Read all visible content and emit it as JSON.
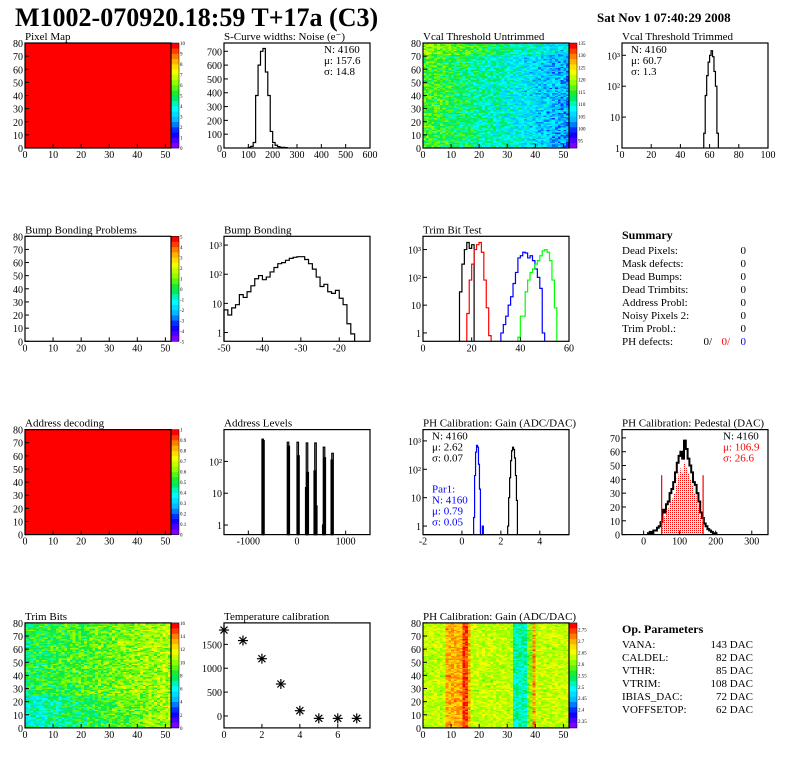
{
  "header": {
    "title": "M1002-070920.18:59 T+17a (C3)",
    "date": "Sat Nov  1 07:40:29 2008"
  },
  "palette": [
    "#8000ff",
    "#0000ff",
    "#00b4ff",
    "#00ffff",
    "#00e63c",
    "#8cff00",
    "#ffff00",
    "#ff9600",
    "#ff0000"
  ],
  "chart_data": [
    {
      "type": "heatmap",
      "title": "Pixel Map",
      "xlim": [
        0,
        52
      ],
      "ylim": [
        0,
        80
      ],
      "zlim": [
        0,
        10
      ],
      "fill_value": 10,
      "xticks": [
        "0",
        "10",
        "20",
        "30",
        "40",
        "50"
      ],
      "yticks": [
        "0",
        "10",
        "20",
        "30",
        "40",
        "50",
        "60",
        "70",
        "80"
      ],
      "zticks": [
        "0",
        "1",
        "2",
        "3",
        "4",
        "5",
        "6",
        "7",
        "8",
        "9",
        "10"
      ]
    },
    {
      "type": "bar",
      "title": "S-Curve widths: Noise (e⁻)",
      "xlim": [
        0,
        600
      ],
      "ylim": [
        0,
        760
      ],
      "log": false,
      "xticks": [
        "0",
        "100",
        "200",
        "300",
        "400",
        "500",
        "600"
      ],
      "yticks": [
        "0",
        "100",
        "200",
        "300",
        "400",
        "500",
        "600",
        "700"
      ],
      "series": [
        {
          "x0": 100,
          "width": 10,
          "values": [
            5,
            12,
            40,
            380,
            600,
            700,
            720,
            550,
            380,
            120,
            40,
            20,
            10,
            5,
            5,
            3
          ],
          "color": "#000000"
        }
      ],
      "stats": [
        "N: 4160",
        "μ: 157.6",
        "σ: 14.8"
      ]
    },
    {
      "type": "heatmap",
      "title": "Vcal Threshold Untrimmed",
      "xlim": [
        0,
        52
      ],
      "ylim": [
        0,
        80
      ],
      "zlim": [
        92,
        135
      ],
      "xticks": [
        "0",
        "10",
        "20",
        "30",
        "40",
        "50"
      ],
      "yticks": [
        "0",
        "10",
        "20",
        "30",
        "40",
        "50",
        "60",
        "70",
        "80"
      ],
      "zticks": [
        "95",
        "100",
        "105",
        "110",
        "115",
        "120",
        "125",
        "130",
        "135"
      ]
    },
    {
      "type": "bar",
      "title": "Vcal Threshold Trimmed",
      "xlim": [
        0,
        100
      ],
      "ylim": [
        1,
        2500
      ],
      "log": true,
      "xticks": [
        "0",
        "20",
        "40",
        "60",
        "80",
        "100"
      ],
      "yticks": [
        "1",
        "10",
        "10²",
        "10³"
      ],
      "series": [
        {
          "x0": 56,
          "width": 1,
          "values": [
            3,
            50,
            220,
            600,
            1000,
            1400,
            900,
            300,
            100,
            3
          ],
          "color": "#000000"
        }
      ],
      "stats": [
        "N: 4160",
        "μ: 60.7",
        "σ:  1.3"
      ]
    },
    {
      "type": "heatmap",
      "title": "Bump Bonding Problems",
      "xlim": [
        0,
        52
      ],
      "ylim": [
        0,
        80
      ],
      "zlim": [
        -5,
        5
      ],
      "empty": true,
      "xticks": [
        "0",
        "10",
        "20",
        "30",
        "40",
        "50"
      ],
      "yticks": [
        "0",
        "10",
        "20",
        "30",
        "40",
        "50",
        "60",
        "70",
        "80"
      ],
      "zticks": [
        "-5",
        "-4",
        "-3",
        "-2",
        "-1",
        "0",
        "1",
        "2",
        "3",
        "4",
        "5"
      ]
    },
    {
      "type": "bar",
      "title": "Bump Bonding",
      "xlim": [
        -50,
        -12
      ],
      "ylim": [
        0.5,
        2000
      ],
      "log": true,
      "xticks": [
        "-50",
        "-40",
        "-30",
        "-20"
      ],
      "yticks": [
        "1",
        "10",
        "10²",
        "10³"
      ],
      "series": [
        {
          "x0": -50,
          "width": 1,
          "values": [
            6,
            4,
            7,
            9,
            20,
            16,
            25,
            40,
            70,
            90,
            65,
            80,
            120,
            170,
            230,
            250,
            300,
            350,
            380,
            400,
            400,
            320,
            230,
            150,
            80,
            38,
            45,
            25,
            22,
            28,
            15,
            9,
            2,
            0.9
          ],
          "color": "#000000"
        }
      ]
    },
    {
      "type": "bar",
      "title": "Trim Bit Test",
      "xlim": [
        0,
        60
      ],
      "ylim": [
        0.5,
        3000
      ],
      "log": true,
      "xticks": [
        "0",
        "20",
        "40",
        "60"
      ],
      "yticks": [
        "1",
        "10",
        "10²",
        "10³"
      ],
      "series": [
        {
          "x0": 15,
          "width": 1,
          "values": [
            30,
            300,
            1000,
            1800,
            1100,
            1500
          ],
          "color": "#000000"
        },
        {
          "x0": 18,
          "width": 1,
          "values": [
            5,
            80,
            300,
            1000,
            1500,
            1800,
            800,
            80,
            8,
            0.8
          ],
          "color": "#ff0000"
        },
        {
          "x0": 32,
          "width": 1,
          "values": [
            1,
            2,
            4,
            10,
            20,
            60,
            150,
            500,
            600,
            800,
            750,
            500,
            600,
            400,
            200,
            100,
            40,
            1
          ],
          "color": "#0000ff"
        },
        {
          "x0": 39,
          "width": 1,
          "values": [
            0.7,
            4,
            4,
            30,
            80,
            150,
            200,
            300,
            400,
            600,
            900,
            1000,
            800,
            400,
            80,
            8
          ],
          "color": "#00ff00"
        }
      ]
    },
    {
      "type": "heatmap",
      "title": "Address decoding",
      "xlim": [
        0,
        52
      ],
      "ylim": [
        0,
        80
      ],
      "zlim": [
        0,
        1
      ],
      "fill_value": 1,
      "xticks": [
        "0",
        "10",
        "20",
        "30",
        "40",
        "50"
      ],
      "yticks": [
        "0",
        "10",
        "20",
        "30",
        "40",
        "50",
        "60",
        "70",
        "80"
      ],
      "zticks": [
        "0",
        "0.1",
        "0.2",
        "0.3",
        "0.4",
        "0.5",
        "0.6",
        "0.7",
        "0.8",
        "0.9",
        "1"
      ]
    },
    {
      "type": "bar",
      "title": "Address Levels",
      "xlim": [
        -1500,
        1500
      ],
      "ylim": [
        0.5,
        1000
      ],
      "log": true,
      "spikes": true,
      "xticks": [
        "-1000",
        "0",
        "1000"
      ],
      "yticks": [
        "1",
        "10",
        "10²"
      ],
      "series": [
        {
          "width": 15,
          "bins": [
            [
              -720,
              500
            ],
            [
              -705,
              450
            ],
            [
              -200,
              400
            ],
            [
              -185,
              300
            ],
            [
              0,
              400
            ],
            [
              15,
              150
            ],
            [
              175,
              15
            ],
            [
              190,
              380
            ],
            [
              205,
              45
            ],
            [
              350,
              50
            ],
            [
              365,
              380
            ],
            [
              380,
              4
            ],
            [
              525,
              1
            ],
            [
              540,
              280
            ],
            [
              555,
              130
            ],
            [
              700,
              110
            ],
            [
              715,
              180
            ]
          ],
          "color": "#000000"
        }
      ]
    },
    {
      "type": "bar",
      "title": "PH Calibration: Gain (ADC/DAC)",
      "xlim": [
        -2,
        5.5
      ],
      "ylim": [
        0.5,
        2500
      ],
      "log": true,
      "xticks": [
        "-2",
        "0",
        "2",
        "4"
      ],
      "yticks": [
        "1",
        "10",
        "10²",
        "10³"
      ],
      "series": [
        {
          "x0": 2.35,
          "width": 0.05,
          "values": [
            1,
            10,
            50,
            200,
            450,
            600,
            500,
            250,
            60,
            8
          ],
          "color": "#000000"
        },
        {
          "x0": 0.6,
          "width": 0.05,
          "values": [
            2,
            60,
            400,
            700,
            600,
            150,
            20,
            0,
            0,
            1
          ],
          "color": "#0000ff"
        },
        {
          "x0": -2,
          "width": 7.5,
          "values": [
            0.5
          ],
          "color": "#0000ff"
        }
      ],
      "stats": [
        "N: 4160",
        "μ: 2.62",
        "σ: 0.07"
      ],
      "stats2": [
        "Par1:",
        "N: 4160",
        "μ: 0.79",
        "σ: 0.05"
      ]
    },
    {
      "type": "bar",
      "title": "PH Calibration: Pedestal (DAC)",
      "xlim": [
        -60,
        345
      ],
      "ylim": [
        0,
        76
      ],
      "log": false,
      "xticks": [
        "0",
        "100",
        "200",
        "300"
      ],
      "yticks": [
        "0",
        "10",
        "20",
        "30",
        "40",
        "50",
        "60",
        "70"
      ],
      "series": [
        {
          "x0": 12,
          "width": 5,
          "values": [
            1,
            2,
            1,
            3,
            3,
            5,
            6,
            9,
            18,
            16,
            22,
            24,
            30,
            33,
            38,
            45,
            52,
            57,
            60,
            55,
            68,
            62,
            55,
            50,
            45,
            38,
            36,
            30,
            24,
            16,
            12,
            8,
            6,
            4,
            3,
            2,
            1,
            1
          ],
          "color": "#000000",
          "thick": true
        },
        {
          "x0": 52,
          "width": 5,
          "values": [
            14,
            13,
            18,
            19,
            24,
            26,
            30,
            36,
            42,
            46,
            48,
            44,
            52,
            48,
            44,
            40,
            36,
            30,
            29,
            24,
            19,
            13,
            9
          ],
          "color": "#ff0000",
          "fill": true
        }
      ],
      "cut_lines": [
        50,
        165
      ],
      "cut_height": 43,
      "stats": [
        "N: 4160",
        "μ: 106.9",
        "σ: 26.6"
      ]
    },
    {
      "type": "heatmap",
      "title": "Trim Bits",
      "xlim": [
        0,
        52
      ],
      "ylim": [
        0,
        80
      ],
      "zlim": [
        0,
        16
      ],
      "xticks": [
        "0",
        "10",
        "20",
        "30",
        "40",
        "50"
      ],
      "yticks": [
        "0",
        "10",
        "20",
        "30",
        "40",
        "50",
        "60",
        "70",
        "80"
      ],
      "zticks": [
        "0",
        "2",
        "4",
        "6",
        "8",
        "10",
        "12",
        "14",
        "16"
      ]
    },
    {
      "type": "scatter",
      "title": "Temperature calibration",
      "xlim": [
        0,
        7.7
      ],
      "ylim": [
        -250,
        1950
      ],
      "xticks": [
        "0",
        "2",
        "4",
        "6"
      ],
      "yticks": [
        "0",
        "500",
        "1000",
        "1500"
      ],
      "x": [
        0,
        1,
        2,
        3,
        4,
        5,
        6,
        7
      ],
      "y": [
        1800,
        1580,
        1200,
        670,
        110,
        -50,
        -50,
        -50
      ]
    },
    {
      "type": "heatmap",
      "title": "PH Calibration: Gain (ADC/DAC)",
      "xlim": [
        0,
        52
      ],
      "ylim": [
        0,
        80
      ],
      "zlim": [
        2.32,
        2.78
      ],
      "xticks": [
        "0",
        "10",
        "20",
        "30",
        "40",
        "50"
      ],
      "yticks": [
        "0",
        "10",
        "20",
        "30",
        "40",
        "50",
        "60",
        "70",
        "80"
      ],
      "zticks": [
        "2.35",
        "2.4",
        "2.45",
        "2.5",
        "2.55",
        "2.6",
        "2.65",
        "2.7",
        "2.75"
      ]
    }
  ],
  "summary": {
    "title": "Summary",
    "rows": [
      {
        "label": "Dead Pixels:",
        "value": "0"
      },
      {
        "label": "Mask defects:",
        "value": "0"
      },
      {
        "label": "Dead Bumps:",
        "value": "0"
      },
      {
        "label": "Dead Trimbits:",
        "value": "0"
      },
      {
        "label": "Address Probl:",
        "value": "0"
      },
      {
        "label": "Noisy Pixels 2:",
        "value": "0"
      },
      {
        "label": "Trim Probl.:",
        "value": "0"
      }
    ],
    "ph_defects": {
      "label": "PH defects:",
      "v1": "0/",
      "v2": "0/",
      "v3": "0",
      "c2": "#ff0000",
      "c3": "#0000ff"
    }
  },
  "op_parameters": {
    "title": "Op. Parameters",
    "rows": [
      {
        "label": "VANA:",
        "value": "143 DAC"
      },
      {
        "label": "CALDEL:",
        "value": "82 DAC"
      },
      {
        "label": "VTHR:",
        "value": "85 DAC"
      },
      {
        "label": "VTRIM:",
        "value": "108 DAC"
      },
      {
        "label": "IBIAS_DAC:",
        "value": "72 DAC"
      },
      {
        "label": "VOFFSETOP:",
        "value": "62 DAC"
      }
    ]
  }
}
